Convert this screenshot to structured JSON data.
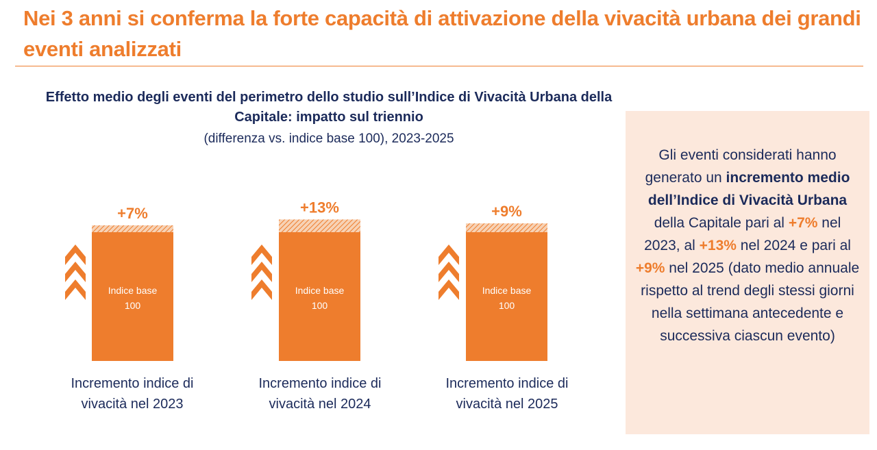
{
  "header": {
    "title": "Nei 3 anni si conferma la forte capacità di attivazione della vivacità urbana dei grandi eventi analizzati"
  },
  "chart_header": {
    "title": "Effetto medio degli eventi del perimetro dello studio sull’Indice di Vivacità Urbana della Capitale: impatto sul triennio",
    "subtitle": "(differenza vs. indice base 100), 2023-2025"
  },
  "colors": {
    "accent": "#EE7D2D",
    "navy": "#1B2A5A",
    "panel": "#FCE8DC"
  },
  "icons": {
    "growth": "triple-chevron-up-icon"
  },
  "chart_data": {
    "type": "bar",
    "base_value": 100,
    "base_label_line1": "Indice base",
    "base_label_line2": "100",
    "bars": [
      {
        "increment": 7,
        "label": "+7%",
        "caption1": "Incremento indice di",
        "caption2": "vivacità nel 2023"
      },
      {
        "increment": 13,
        "label": "+13%",
        "caption1": "Incremento indice di",
        "caption2": "vivacità nel 2024"
      },
      {
        "increment": 9,
        "label": "+9%",
        "caption1": "Incremento indice di",
        "caption2": "vivacità nel 2025"
      }
    ]
  },
  "panel": {
    "t1": "Gli eventi considerati hanno generato un ",
    "b1": "incremento medio dell’Indice di Vivacità Urbana",
    "t2": " della Capitale pari al ",
    "v1": "+7%",
    "t3": " nel 2023, al ",
    "v2": "+13%",
    "t4": " nel 2024 e pari al ",
    "v3": "+9%",
    "t5": " nel 2025 (dato medio annuale rispetto al trend degli stessi giorni nella settimana antecedente e successiva ciascun evento)"
  }
}
